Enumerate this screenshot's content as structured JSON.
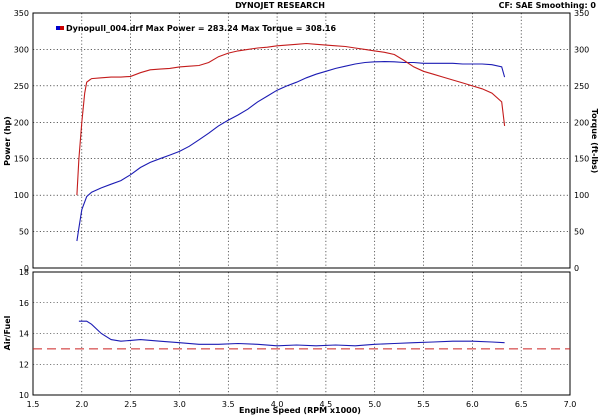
{
  "header": {
    "title": "DYNOJET RESEARCH",
    "settings": "CF: SAE  Smoothing: 0"
  },
  "legend": {
    "label": "Dynopull_004.drf Max Power = 283.24   Max Torque = 308.16",
    "swatch_colors": [
      "#0000cc",
      "#cc0000"
    ]
  },
  "chart_data": [
    {
      "type": "line",
      "xlabel": "Engine Speed (RPM x1000)",
      "ylabel": "Power (hp)",
      "y2label": "Torque (ft-lbs)",
      "xlim": [
        1.5,
        7.0
      ],
      "ylim": [
        0,
        350
      ],
      "y2lim": [
        0,
        350
      ],
      "x_ticks": [
        "1.5",
        "2.0",
        "2.5",
        "3.0",
        "3.5",
        "4.0",
        "4.5",
        "5.0",
        "5.5",
        "6.0",
        "6.5",
        "7.0"
      ],
      "y_ticks": [
        "0",
        "50",
        "100",
        "150",
        "200",
        "250",
        "300",
        "350"
      ],
      "grid": true,
      "series": [
        {
          "key": "power",
          "axis": "left",
          "color": "#1c1cb4",
          "x": [
            1.95,
            1.97,
            2.0,
            2.05,
            2.1,
            2.2,
            2.3,
            2.4,
            2.5,
            2.6,
            2.7,
            2.8,
            2.9,
            3.0,
            3.1,
            3.2,
            3.3,
            3.4,
            3.5,
            3.6,
            3.7,
            3.8,
            3.9,
            4.0,
            4.1,
            4.2,
            4.3,
            4.4,
            4.5,
            4.6,
            4.7,
            4.8,
            4.9,
            5.0,
            5.1,
            5.2,
            5.3,
            5.4,
            5.5,
            5.6,
            5.7,
            5.8,
            5.9,
            6.0,
            6.1,
            6.2,
            6.3,
            6.33
          ],
          "values": [
            37,
            55,
            80,
            98,
            104,
            110,
            115,
            120,
            128,
            138,
            145,
            150,
            155,
            160,
            167,
            176,
            185,
            195,
            203,
            210,
            218,
            228,
            236,
            244,
            250,
            255,
            261,
            266,
            270,
            274,
            277,
            280,
            282,
            283,
            283.24,
            283,
            282,
            282,
            281,
            281,
            281,
            281,
            280,
            280,
            280,
            279,
            276,
            262
          ]
        },
        {
          "key": "torque",
          "axis": "right",
          "color": "#c41c1c",
          "x": [
            1.95,
            1.97,
            2.0,
            2.03,
            2.05,
            2.08,
            2.1,
            2.2,
            2.3,
            2.4,
            2.5,
            2.6,
            2.7,
            2.8,
            2.9,
            3.0,
            3.1,
            3.2,
            3.3,
            3.4,
            3.5,
            3.6,
            3.7,
            3.8,
            3.9,
            4.0,
            4.1,
            4.2,
            4.3,
            4.4,
            4.5,
            4.6,
            4.7,
            4.8,
            4.9,
            5.0,
            5.1,
            5.2,
            5.3,
            5.4,
            5.5,
            5.6,
            5.7,
            5.8,
            5.9,
            6.0,
            6.1,
            6.2,
            6.3,
            6.33
          ],
          "values": [
            100,
            150,
            200,
            240,
            255,
            258,
            260,
            261,
            262,
            262,
            263,
            268,
            272,
            273,
            274,
            276,
            277,
            278,
            282,
            290,
            295,
            298,
            300,
            302,
            303,
            305,
            306,
            307,
            308.16,
            307,
            306,
            305,
            304,
            302,
            300,
            298,
            296,
            293,
            285,
            276,
            270,
            266,
            262,
            258,
            254,
            250,
            246,
            240,
            228,
            195
          ]
        }
      ]
    },
    {
      "type": "line",
      "ylabel": "Air/Fuel",
      "xlim": [
        1.5,
        7.0
      ],
      "ylim": [
        10,
        18
      ],
      "y_ticks": [
        "10",
        "12",
        "14",
        "16",
        "18"
      ],
      "grid": true,
      "reference_line": {
        "value": 13.0,
        "color": "#cc2222",
        "style": "dashed"
      },
      "series": [
        {
          "key": "afr",
          "color": "#1c1cb4",
          "x": [
            1.97,
            2.0,
            2.05,
            2.1,
            2.2,
            2.3,
            2.4,
            2.5,
            2.6,
            2.8,
            3.0,
            3.2,
            3.4,
            3.6,
            3.8,
            4.0,
            4.2,
            4.4,
            4.6,
            4.8,
            5.0,
            5.2,
            5.4,
            5.6,
            5.8,
            6.0,
            6.2,
            6.33
          ],
          "values": [
            14.8,
            14.8,
            14.8,
            14.6,
            14.0,
            13.6,
            13.5,
            13.55,
            13.6,
            13.5,
            13.4,
            13.3,
            13.3,
            13.35,
            13.3,
            13.2,
            13.25,
            13.2,
            13.25,
            13.2,
            13.3,
            13.35,
            13.4,
            13.45,
            13.5,
            13.5,
            13.45,
            13.4
          ]
        }
      ]
    }
  ]
}
